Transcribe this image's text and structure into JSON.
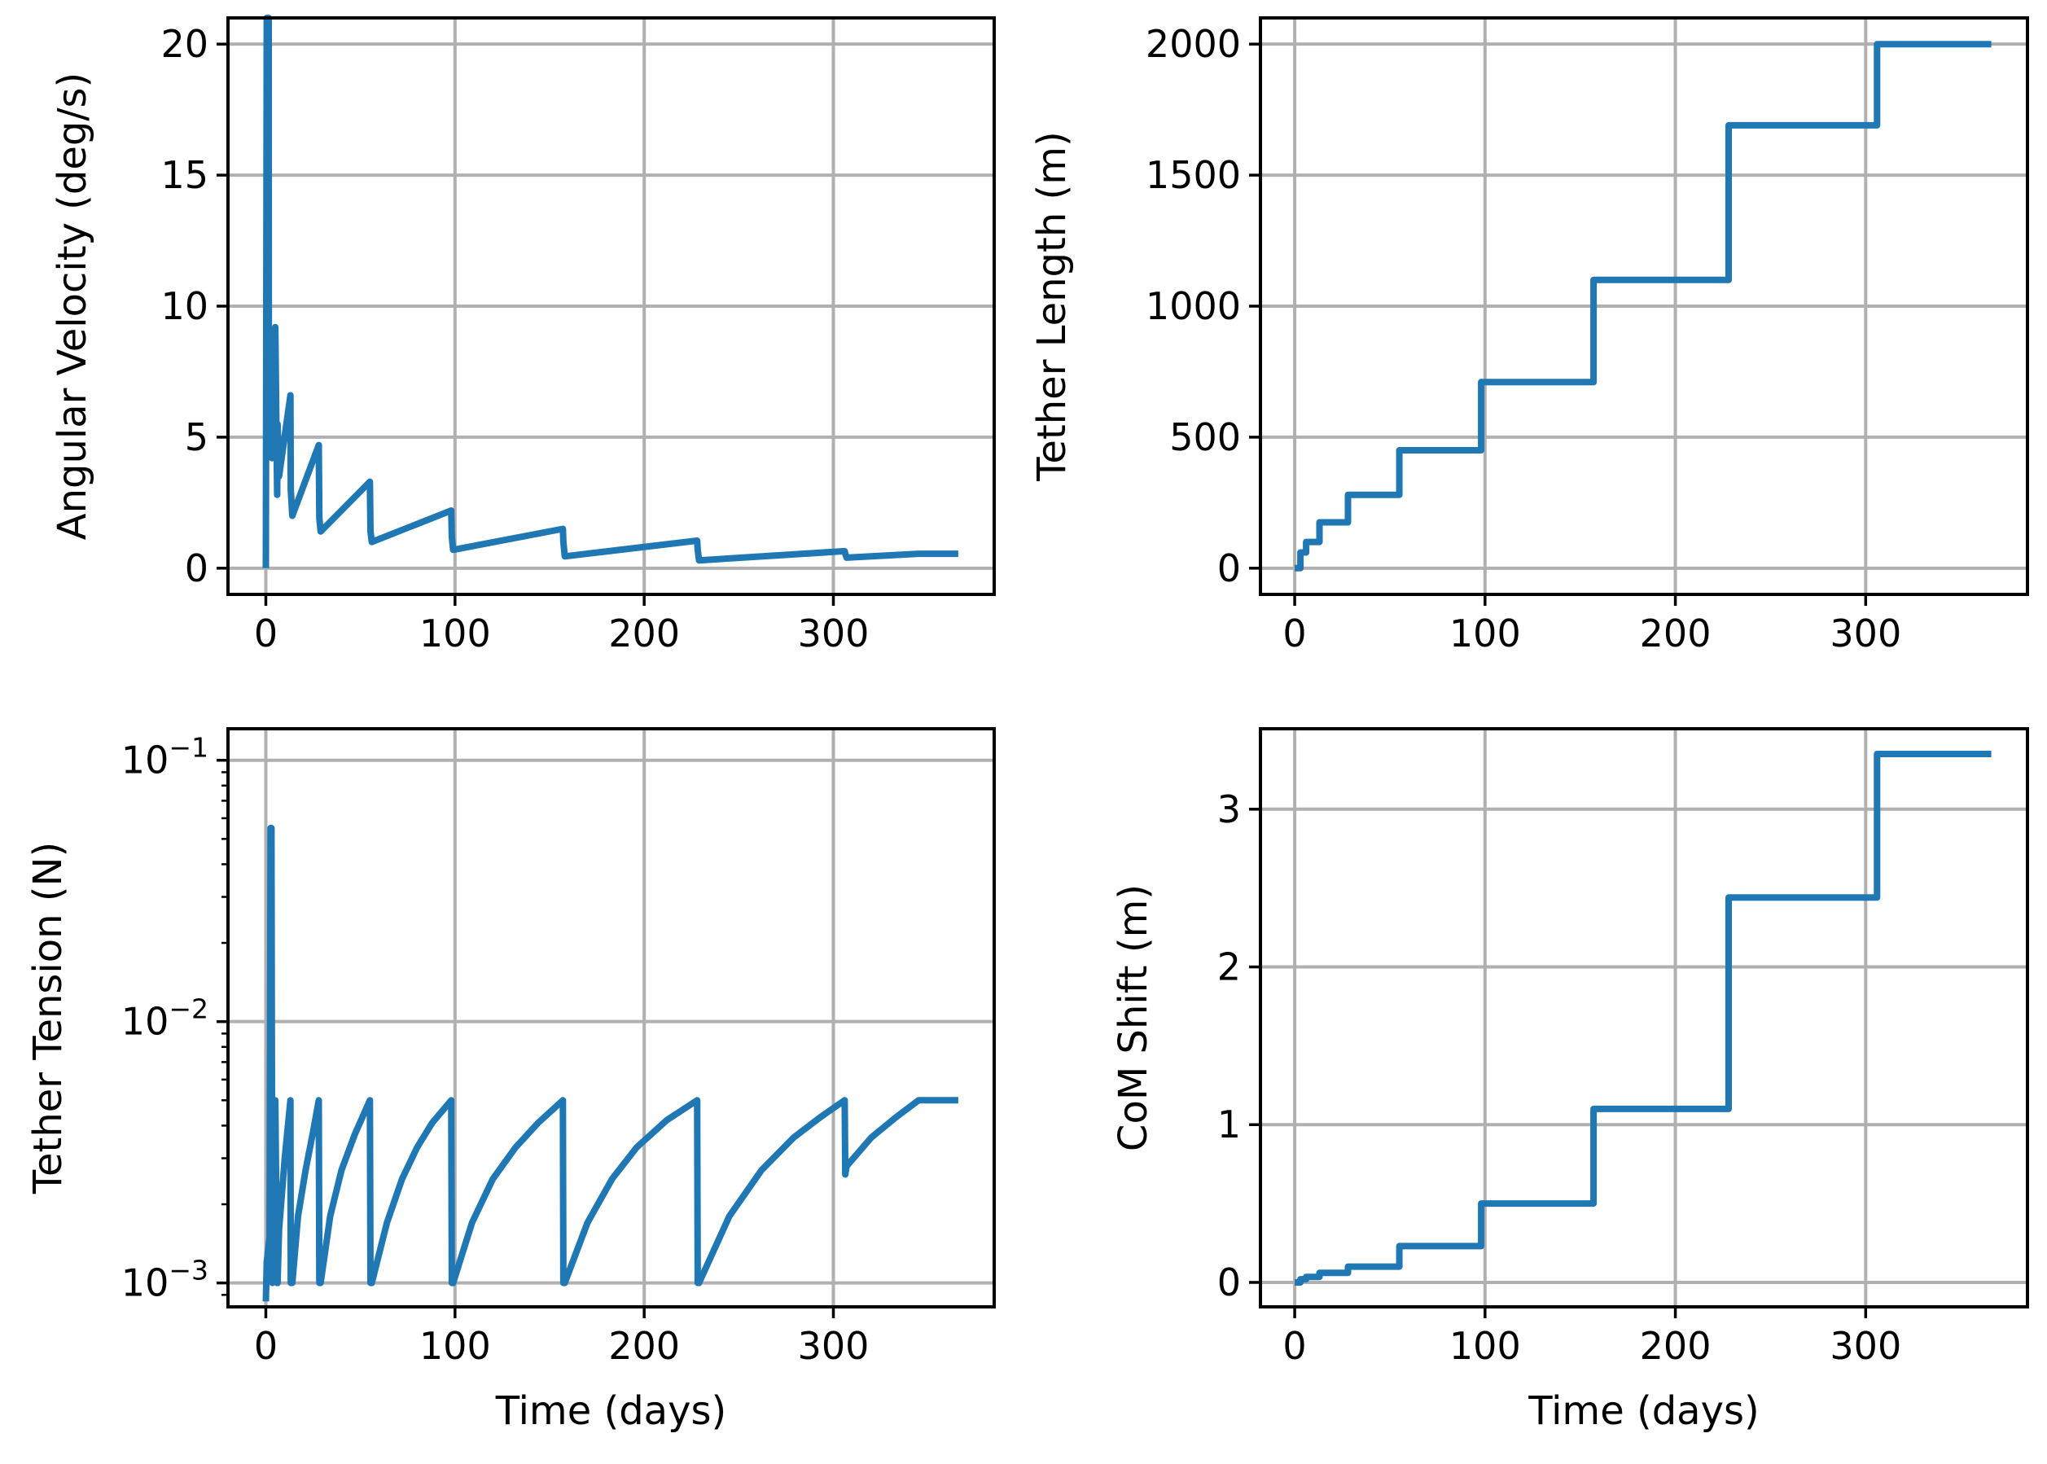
{
  "chart_data": [
    {
      "id": "angular",
      "type": "line",
      "scale": "linear",
      "xlabel": "",
      "ylabel": "Angular Velocity (deg/s)",
      "xlim": [
        -20,
        385
      ],
      "ylim": [
        -1,
        21
      ],
      "xticks": [
        0,
        100,
        200,
        300
      ],
      "xtick_labels": [
        "0",
        "100",
        "200",
        "300"
      ],
      "yticks": [
        0,
        5,
        10,
        15,
        20
      ],
      "ytick_labels": [
        "0",
        "5",
        "10",
        "15",
        "20"
      ],
      "grid": true,
      "color": "#1f77b4",
      "series": [
        {
          "x": [
            0,
            0.5,
            1.5,
            1.6,
            2,
            3,
            3.3,
            4,
            5,
            6,
            6.2,
            7,
            13,
            13.2,
            14,
            28,
            28.3,
            29,
            55,
            55.3,
            56,
            98,
            98.3,
            99,
            157,
            157.3,
            158,
            228,
            228.3,
            229,
            306,
            306.3,
            307,
            345,
            366
          ],
          "y": [
            0,
            21,
            21,
            4.5,
            6,
            8.5,
            4.2,
            6.5,
            9.2,
            2.8,
            5.5,
            3.5,
            6.6,
            3.0,
            2.0,
            4.7,
            1.9,
            1.4,
            3.3,
            1.4,
            1.0,
            2.2,
            1.2,
            0.7,
            1.5,
            1.0,
            0.45,
            1.05,
            0.7,
            0.3,
            0.65,
            0.55,
            0.4,
            0.55,
            0.55
          ]
        }
      ]
    },
    {
      "id": "length",
      "type": "line",
      "scale": "linear",
      "xlabel": "",
      "ylabel": "Tether Length (m)",
      "xlim": [
        -18,
        385
      ],
      "ylim": [
        -100,
        2100
      ],
      "xticks": [
        0,
        100,
        200,
        300
      ],
      "xtick_labels": [
        "0",
        "100",
        "200",
        "300"
      ],
      "yticks": [
        0,
        500,
        1000,
        1500,
        2000
      ],
      "ytick_labels": [
        "0",
        "500",
        "1000",
        "1500",
        "2000"
      ],
      "grid": true,
      "color": "#1f77b4",
      "series": [
        {
          "x": [
            0,
            3,
            3,
            6,
            6,
            13,
            13,
            28,
            28,
            55,
            55,
            98,
            98,
            157,
            157,
            228,
            228,
            306,
            306,
            366
          ],
          "y": [
            0,
            0,
            60,
            60,
            100,
            100,
            175,
            175,
            280,
            280,
            450,
            450,
            710,
            710,
            1100,
            1100,
            1690,
            1690,
            2000,
            2000
          ]
        }
      ]
    },
    {
      "id": "tension",
      "type": "line",
      "scale": "log",
      "xlabel": "Time (days)",
      "ylabel": "Tether Tension (N)",
      "xlim": [
        -20,
        385
      ],
      "ylim": [
        0.00081,
        0.132
      ],
      "xticks": [
        0,
        100,
        200,
        300
      ],
      "xtick_labels": [
        "0",
        "100",
        "200",
        "300"
      ],
      "yticks": [
        0.001,
        0.01,
        0.1
      ],
      "ytick_base": "10",
      "ytick_exponents": [
        "−3",
        "−2",
        "−1"
      ],
      "grid": true,
      "color": "#1f77b4",
      "series": [
        {
          "x": [
            0,
            0.5,
            2,
            2.5,
            3,
            3.4,
            4,
            5,
            6,
            6.2,
            7,
            10,
            13,
            13.2,
            14,
            17,
            21,
            25,
            28,
            28.3,
            29,
            34,
            40,
            47,
            55,
            55.3,
            56,
            64,
            72,
            80,
            88,
            98,
            98.3,
            99,
            109,
            120,
            132,
            144,
            157,
            157.3,
            158,
            170,
            183,
            196,
            212,
            228,
            228.3,
            229,
            245,
            262,
            279,
            293,
            306,
            306.3,
            307,
            320,
            333,
            345,
            366
          ],
          "y": [
            0.00085,
            0.0012,
            0.0015,
            0.055,
            0.055,
            0.001,
            0.0025,
            0.005,
            0.001,
            0.001,
            0.0016,
            0.003,
            0.005,
            0.001,
            0.001,
            0.0018,
            0.0027,
            0.0038,
            0.005,
            0.001,
            0.001,
            0.0018,
            0.0027,
            0.0037,
            0.005,
            0.001,
            0.001,
            0.0017,
            0.0025,
            0.0033,
            0.0041,
            0.005,
            0.001,
            0.001,
            0.0017,
            0.0025,
            0.0033,
            0.0041,
            0.005,
            0.001,
            0.001,
            0.0017,
            0.0025,
            0.0033,
            0.0042,
            0.005,
            0.001,
            0.001,
            0.0018,
            0.0027,
            0.0036,
            0.0043,
            0.005,
            0.0026,
            0.0028,
            0.0036,
            0.0043,
            0.005,
            0.005
          ]
        }
      ]
    },
    {
      "id": "com",
      "type": "line",
      "scale": "linear",
      "xlabel": "Time (days)",
      "ylabel": "CoM Shift (m)",
      "xlim": [
        -18,
        385
      ],
      "ylim": [
        -0.155,
        3.51
      ],
      "xticks": [
        0,
        100,
        200,
        300
      ],
      "xtick_labels": [
        "0",
        "100",
        "200",
        "300"
      ],
      "yticks": [
        0,
        1,
        2,
        3
      ],
      "ytick_labels": [
        "0",
        "1",
        "2",
        "3"
      ],
      "grid": true,
      "color": "#1f77b4",
      "series": [
        {
          "x": [
            0,
            3,
            3,
            6,
            6,
            13,
            13,
            28,
            28,
            55,
            55,
            98,
            98,
            157,
            157,
            228,
            228,
            306,
            306,
            366
          ],
          "y": [
            0,
            0,
            0.02,
            0.02,
            0.035,
            0.035,
            0.06,
            0.06,
            0.1,
            0.1,
            0.23,
            0.23,
            0.5,
            0.5,
            1.1,
            1.1,
            2.44,
            2.44,
            3.35,
            3.35
          ]
        }
      ]
    }
  ]
}
